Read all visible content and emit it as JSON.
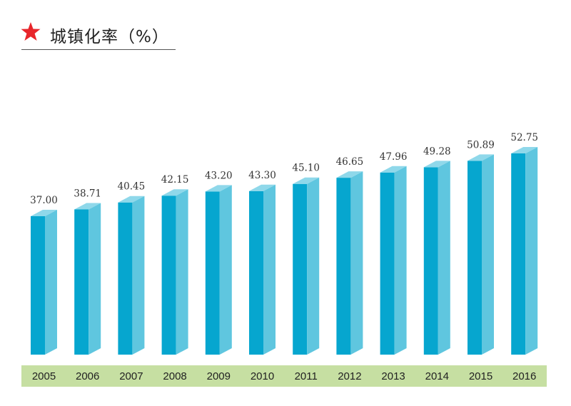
{
  "header": {
    "title": "城镇化率（%）",
    "star_color": "#e8262b"
  },
  "colors": {
    "bar_front": "#06a6cf",
    "bar_side": "#5fc6df",
    "bar_top": "#8fd8ea",
    "axis_band": "#c6dfa2"
  },
  "chart_data": {
    "type": "bar",
    "title": "城镇化率（%）",
    "xlabel": "",
    "ylabel": "",
    "categories": [
      "2005",
      "2006",
      "2007",
      "2008",
      "2009",
      "2010",
      "2011",
      "2012",
      "2013",
      "2014",
      "2015",
      "2016"
    ],
    "values": [
      37.0,
      38.71,
      40.45,
      42.15,
      43.2,
      43.3,
      45.1,
      46.65,
      47.96,
      49.28,
      50.89,
      52.75
    ],
    "value_labels": [
      "37.00",
      "38.71",
      "40.45",
      "42.15",
      "43.20",
      "43.30",
      "45.10",
      "46.65",
      "47.96",
      "49.28",
      "50.89",
      "52.75"
    ],
    "grid": false,
    "legend": "none"
  }
}
